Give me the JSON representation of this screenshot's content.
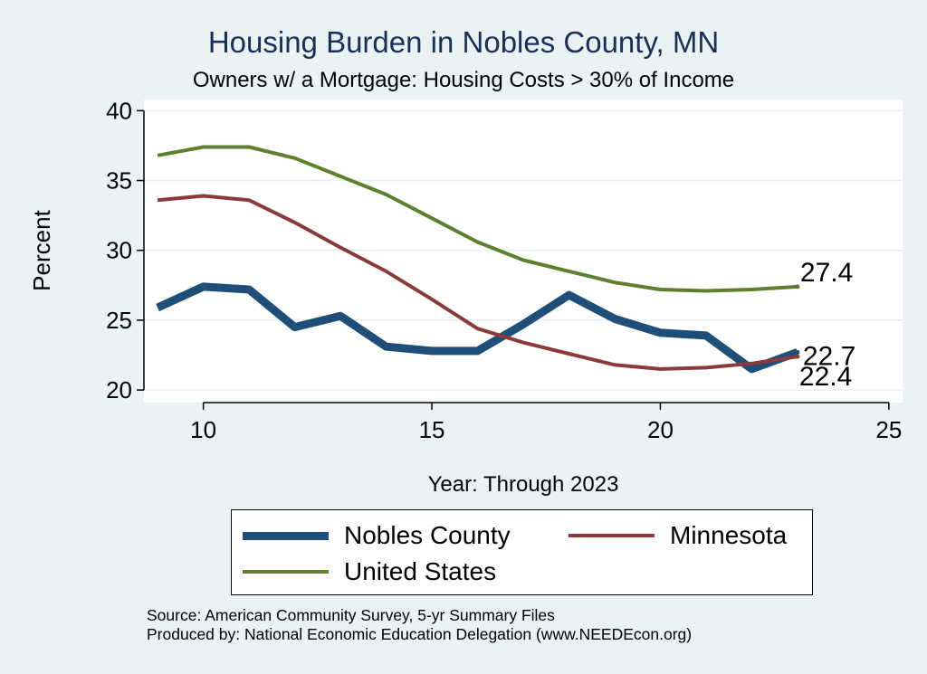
{
  "chart_data": {
    "type": "line",
    "title": "Housing Burden in Nobles County, MN",
    "subtitle": "Owners w/ a Mortgage: Housing Costs > 30% of Income",
    "xlabel": "Year: Through 2023",
    "ylabel": "Percent",
    "xlim": [
      8.7,
      25.3
    ],
    "ylim": [
      19.1,
      40.8
    ],
    "xticks": [
      10,
      15,
      20,
      25
    ],
    "yticks": [
      20,
      25,
      30,
      35,
      40
    ],
    "grid": true,
    "legend_position": "bottom",
    "x": [
      9,
      10,
      11,
      12,
      13,
      14,
      15,
      16,
      17,
      18,
      19,
      20,
      21,
      22,
      23
    ],
    "series": [
      {
        "name": "Nobles County",
        "color": "#1f4e79",
        "width": 9,
        "values": [
          25.9,
          27.4,
          27.2,
          24.5,
          25.3,
          23.1,
          22.8,
          22.8,
          24.7,
          26.8,
          25.1,
          24.1,
          23.9,
          21.5,
          22.7
        ],
        "end_label": "22.7"
      },
      {
        "name": "Minnesota",
        "color": "#8b3a3a",
        "width": 4,
        "values": [
          33.6,
          33.9,
          33.6,
          32.0,
          30.2,
          28.5,
          26.5,
          24.4,
          23.4,
          22.6,
          21.8,
          21.5,
          21.6,
          21.9,
          22.4
        ],
        "end_label": "22.4"
      },
      {
        "name": "United States",
        "color": "#5e7f2e",
        "width": 4,
        "values": [
          36.8,
          37.4,
          37.4,
          36.6,
          35.3,
          34.0,
          32.3,
          30.6,
          29.3,
          28.5,
          27.7,
          27.2,
          27.1,
          27.2,
          27.4
        ],
        "end_label": "27.4"
      }
    ]
  },
  "source_line1": "Source: American Community Survey, 5-yr Summary Files",
  "source_line2": "Produced by: National Economic Education Delegation (www.NEEDEcon.org)"
}
